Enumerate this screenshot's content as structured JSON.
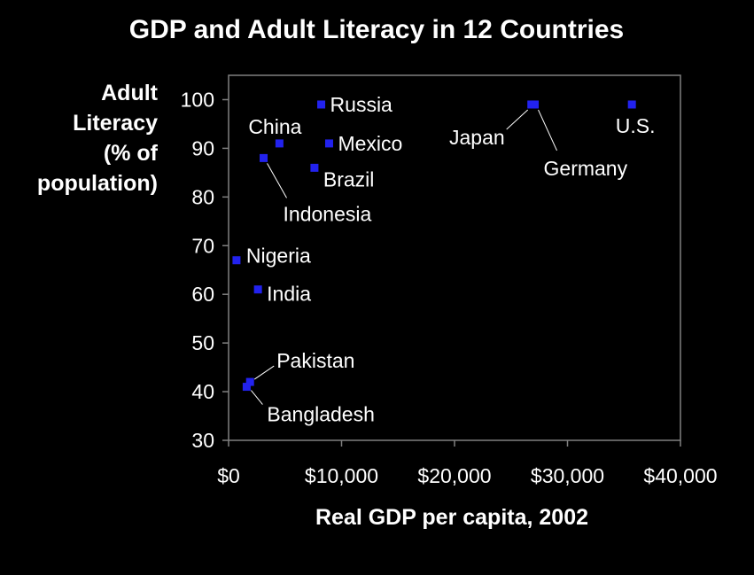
{
  "chart_data": {
    "type": "scatter",
    "title": "GDP and Adult Literacy in 12 Countries",
    "xlabel": "Real GDP per capita, 2002",
    "ylabel_lines": [
      "Adult",
      "Literacy",
      "(% of",
      "population)"
    ],
    "xlim": [
      0,
      40000
    ],
    "ylim": [
      30,
      105
    ],
    "xticks": [
      0,
      10000,
      20000,
      30000,
      40000
    ],
    "xtick_labels": [
      "$0",
      "$10,000",
      "$20,000",
      "$30,000",
      "$40,000"
    ],
    "yticks": [
      30,
      40,
      50,
      60,
      70,
      80,
      90,
      100
    ],
    "ytick_labels": [
      "30",
      "40",
      "50",
      "60",
      "70",
      "80",
      "90",
      "100"
    ],
    "grid": false,
    "marker_color": "#2222ee",
    "background": "#000000",
    "points": [
      {
        "label": "Russia",
        "x": 8200,
        "y": 99
      },
      {
        "label": "Japan",
        "x": 26800,
        "y": 99
      },
      {
        "label": "Germany",
        "x": 27100,
        "y": 99
      },
      {
        "label": "U.S.",
        "x": 35700,
        "y": 99
      },
      {
        "label": "China",
        "x": 4500,
        "y": 91
      },
      {
        "label": "Mexico",
        "x": 8900,
        "y": 91
      },
      {
        "label": "Indonesia",
        "x": 3100,
        "y": 88
      },
      {
        "label": "Brazil",
        "x": 7600,
        "y": 86
      },
      {
        "label": "Nigeria",
        "x": 700,
        "y": 67
      },
      {
        "label": "India",
        "x": 2600,
        "y": 61
      },
      {
        "label": "Pakistan",
        "x": 1900,
        "y": 42
      },
      {
        "label": "Bangladesh",
        "x": 1600,
        "y": 41
      }
    ]
  }
}
